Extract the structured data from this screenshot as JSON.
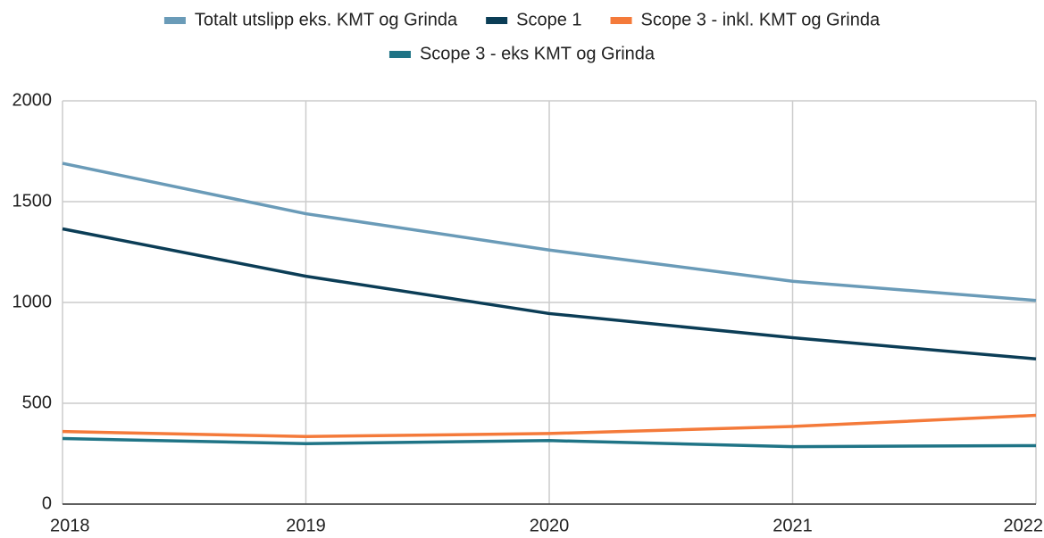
{
  "chart_data": {
    "type": "line",
    "x": [
      2018,
      2019,
      2020,
      2021,
      2022
    ],
    "xlim": [
      2018,
      2022
    ],
    "xticks": [
      2018,
      2019,
      2020,
      2021,
      2022
    ],
    "ylim": [
      0,
      2000
    ],
    "yticks": [
      0,
      500,
      1000,
      1500,
      2000
    ],
    "grid": true,
    "legend": "top",
    "series": [
      {
        "name": "Totalt utslipp eks. KMT og Grinda",
        "color": "#6a9bb8",
        "values": [
          1690,
          1440,
          1260,
          1105,
          1010
        ]
      },
      {
        "name": "Scope 1",
        "color": "#0b3d56",
        "values": [
          1365,
          1130,
          945,
          825,
          720
        ]
      },
      {
        "name": "Scope 3 - inkl. KMT og Grinda",
        "color": "#f47a3a",
        "values": [
          360,
          335,
          350,
          385,
          440
        ]
      },
      {
        "name": "Scope 3 - eks KMT og Grinda",
        "color": "#1f7486",
        "values": [
          325,
          300,
          315,
          285,
          290
        ]
      }
    ]
  }
}
